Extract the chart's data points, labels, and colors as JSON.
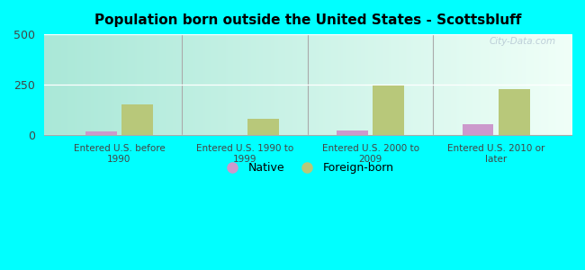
{
  "title": "Population born outside the United States - Scottsbluff",
  "categories": [
    "Entered U.S. before\n1990",
    "Entered U.S. 1990 to\n1999",
    "Entered U.S. 2000 to\n2009",
    "Entered U.S. 2010 or\nlater"
  ],
  "native_values": [
    20,
    0,
    22,
    55
  ],
  "foreign_values": [
    155,
    80,
    248,
    230
  ],
  "native_color": "#cc99cc",
  "foreign_color": "#b8c87a",
  "ylim": [
    0,
    500
  ],
  "yticks": [
    0,
    250,
    500
  ],
  "background_color": "#00ffff",
  "watermark": "City-Data.com",
  "legend_native": "Native",
  "legend_foreign": "Foreign-born",
  "bar_width": 0.25,
  "grad_left": "#aae8d8",
  "grad_right": "#f0fff8"
}
